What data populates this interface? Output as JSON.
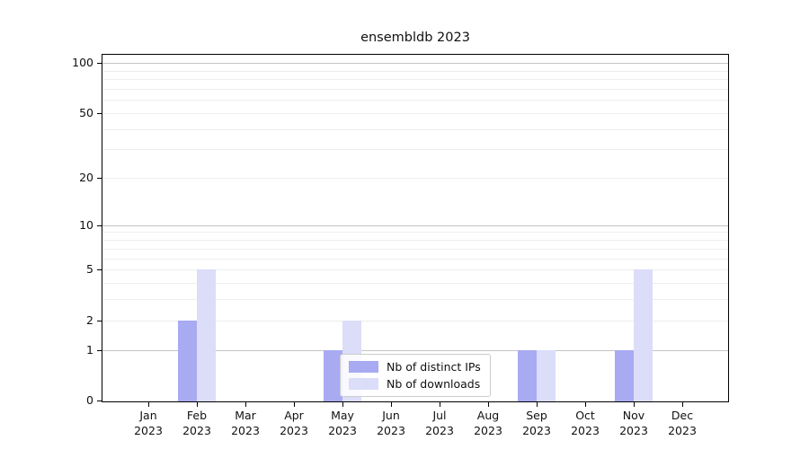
{
  "chart_data": {
    "type": "bar",
    "title": "ensembldb 2023",
    "categories": [
      {
        "month": "Jan",
        "year": "2023"
      },
      {
        "month": "Feb",
        "year": "2023"
      },
      {
        "month": "Mar",
        "year": "2023"
      },
      {
        "month": "Apr",
        "year": "2023"
      },
      {
        "month": "May",
        "year": "2023"
      },
      {
        "month": "Jun",
        "year": "2023"
      },
      {
        "month": "Jul",
        "year": "2023"
      },
      {
        "month": "Aug",
        "year": "2023"
      },
      {
        "month": "Sep",
        "year": "2023"
      },
      {
        "month": "Oct",
        "year": "2023"
      },
      {
        "month": "Nov",
        "year": "2023"
      },
      {
        "month": "Dec",
        "year": "2023"
      }
    ],
    "series": [
      {
        "name": "Nb of distinct IPs",
        "color": "#a8aaf2",
        "values": [
          0,
          2,
          0,
          0,
          1,
          0,
          0,
          0,
          1,
          0,
          1,
          0
        ]
      },
      {
        "name": "Nb of downloads",
        "color": "#dbddf9",
        "values": [
          0,
          5,
          0,
          0,
          2,
          0,
          0,
          0,
          1,
          0,
          5,
          0
        ]
      }
    ],
    "yscale": "log1p",
    "ylim": [
      0,
      112
    ],
    "yticks": [
      0,
      1,
      2,
      5,
      10,
      20,
      50,
      100
    ],
    "grid": {
      "major_lines": [
        1,
        10,
        100
      ],
      "minor_lines": [
        2,
        3,
        4,
        5,
        6,
        7,
        8,
        9,
        20,
        30,
        40,
        50,
        60,
        70,
        80,
        90
      ]
    },
    "legend_position": "lower center inside"
  },
  "colors": {
    "grid_major": "#c3c3c3",
    "grid_minor": "#ededed",
    "spine": "#000000",
    "legend_border": "#cccccc",
    "text": "#111111"
  }
}
